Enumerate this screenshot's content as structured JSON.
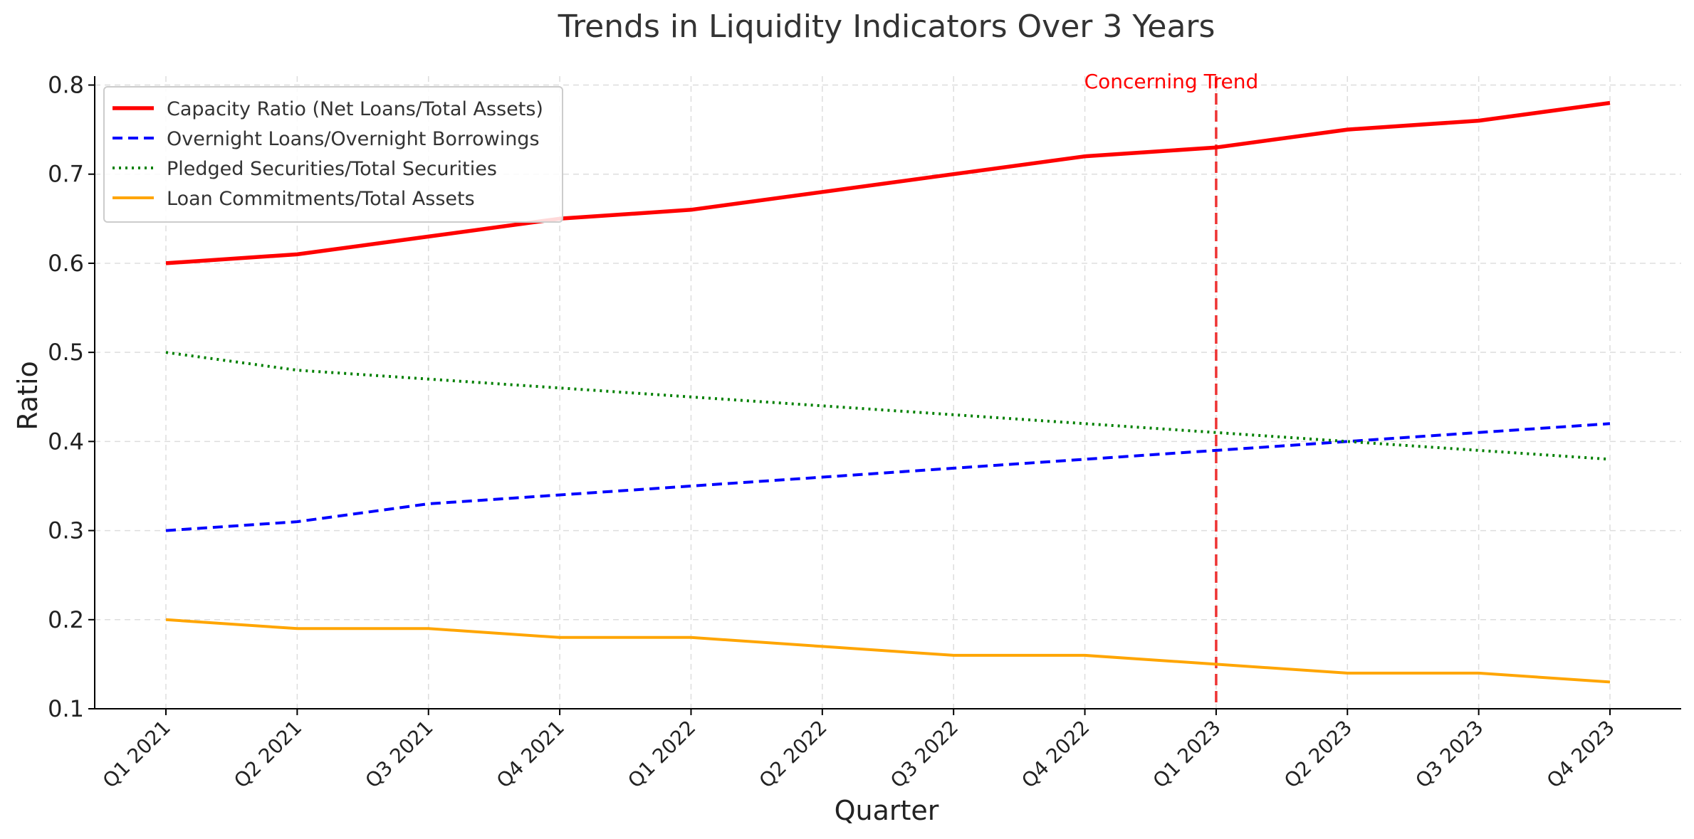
{
  "chart_data": {
    "type": "line",
    "title": "Trends in Liquidity Indicators Over 3 Years",
    "xlabel": "Quarter",
    "ylabel": "Ratio",
    "categories": [
      "Q1 2021",
      "Q2 2021",
      "Q3 2021",
      "Q4 2021",
      "Q1 2022",
      "Q2 2022",
      "Q3 2022",
      "Q4 2022",
      "Q1 2023",
      "Q2 2023",
      "Q3 2023",
      "Q4 2023"
    ],
    "ylim": [
      0.1,
      0.81
    ],
    "yticks": [
      "0.1",
      "0.2",
      "0.3",
      "0.4",
      "0.5",
      "0.6",
      "0.7",
      "0.8"
    ],
    "grid": true,
    "legend_position": "top-left",
    "series": [
      {
        "name": "Capacity Ratio (Net Loans/Total Assets)",
        "color": "#ff0000",
        "style": "solid",
        "values": [
          0.6,
          0.61,
          0.63,
          0.65,
          0.66,
          0.68,
          0.7,
          0.72,
          0.73,
          0.75,
          0.76,
          0.78
        ]
      },
      {
        "name": "Overnight Loans/Overnight Borrowings",
        "color": "#0000ff",
        "style": "dashed",
        "values": [
          0.3,
          0.31,
          0.33,
          0.34,
          0.35,
          0.36,
          0.37,
          0.38,
          0.39,
          0.4,
          0.41,
          0.42
        ]
      },
      {
        "name": "Pledged Securities/Total Securities",
        "color": "#008000",
        "style": "dotted",
        "values": [
          0.5,
          0.48,
          0.47,
          0.46,
          0.45,
          0.44,
          0.43,
          0.42,
          0.41,
          0.4,
          0.39,
          0.38
        ]
      },
      {
        "name": "Loan Commitments/Total Assets",
        "color": "#ffa500",
        "style": "solid",
        "values": [
          0.2,
          0.19,
          0.19,
          0.18,
          0.18,
          0.17,
          0.16,
          0.16,
          0.15,
          0.14,
          0.14,
          0.13
        ]
      }
    ],
    "annotations": [
      {
        "text": "Concerning Trend",
        "x": "Q1 2023",
        "color": "#ff0000",
        "line_color": "#ee3333",
        "line_style": "dashed"
      }
    ]
  }
}
